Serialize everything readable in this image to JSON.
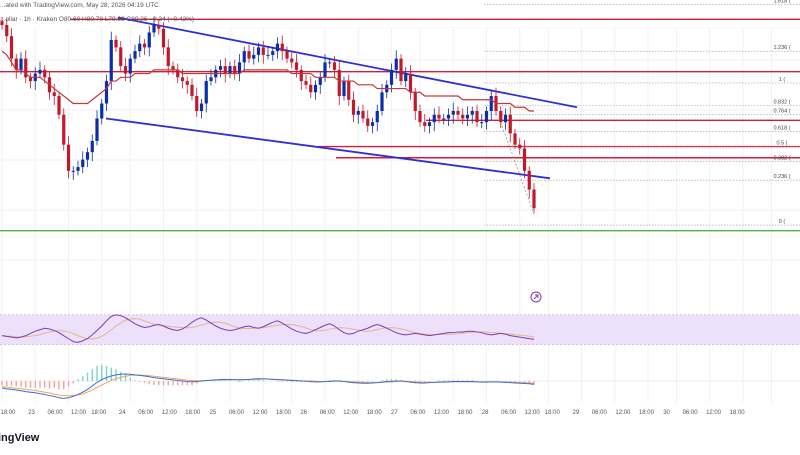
{
  "header": {
    "text": "...ollar · 1h · Kraken  O80.60  H80.78  L79.92  C80.26  −0.34 (−0.42%)",
    "published": "...ated with TradingView.com, May 28, 2026 04:19 UTC"
  },
  "branding": {
    "logo_text": "ingView"
  },
  "colors": {
    "up": "#0b2ea8",
    "down": "#c2182b",
    "channel": "#2f2fd6",
    "sma": "#c03a3a",
    "resistance": "#d21d3a",
    "fib": "#9a9a9a",
    "support": "#4caf50",
    "rsi_band": "#ece0fa",
    "rsi_line": "#7b3fb0",
    "rsi_ma": "#e0b88a",
    "macd_line": "#3b6fd6",
    "signal_line": "#f0a458",
    "hist_pos": "#7fd3c8",
    "hist_neg": "#f2a19b"
  },
  "chart_data": {
    "type": "line",
    "title": "",
    "xlabel": "",
    "ylabel": "",
    "ylim": [
      77.5,
      85.2
    ],
    "grid": true,
    "price_series": {
      "name": "",
      "values": [
        84.8,
        84.5,
        83.9,
        83.6,
        83.9,
        83.4,
        83.3,
        83.5,
        83.6,
        83.4,
        83.0,
        82.9,
        82.4,
        81.6,
        80.9,
        80.9,
        81.0,
        81.2,
        81.4,
        81.7,
        82.3,
        82.7,
        83.3,
        84.4,
        84.2,
        83.7,
        83.5,
        83.9,
        84.1,
        84.3,
        84.2,
        84.6,
        84.8,
        84.7,
        84.2,
        83.7,
        83.6,
        83.4,
        83.3,
        83.2,
        82.9,
        82.5,
        82.7,
        83.3,
        83.4,
        83.6,
        83.7,
        83.5,
        83.7,
        83.5,
        83.8,
        84.1,
        83.9,
        84.0,
        84.2,
        84.0,
        84.0,
        84.1,
        84.3,
        84.1,
        83.9,
        83.8,
        83.6,
        83.3,
        83.2,
        83.0,
        83.2,
        83.4,
        83.8,
        83.8,
        83.6,
        82.9,
        83.3,
        82.8,
        82.4,
        82.5,
        82.3,
        82.1,
        82.2,
        82.5,
        83.0,
        83.2,
        83.6,
        83.9,
        83.3,
        83.5,
        83.0,
        82.5,
        82.2,
        82.1,
        82.2,
        82.4,
        82.3,
        82.3,
        82.4,
        82.5,
        82.4,
        82.3,
        82.4,
        82.5,
        82.2,
        82.2,
        82.5,
        82.9,
        82.5,
        82.2,
        82.4,
        81.9,
        81.6,
        81.5,
        80.9,
        80.4,
        79.9
      ],
      "ohlc_legend": {
        "open": 80.6,
        "high": 80.78,
        "low": 79.92,
        "close": 80.26,
        "change": -0.34,
        "change_pct": -0.42
      }
    },
    "sma_series": {
      "name": "",
      "values": [
        84.1,
        84.0,
        83.8,
        83.6,
        83.6,
        83.5,
        83.4,
        83.4,
        83.4,
        83.3,
        83.2,
        83.1,
        83.0,
        82.9,
        82.8,
        82.7,
        82.7,
        82.7,
        82.7,
        82.8,
        82.9,
        83.0,
        83.1,
        83.3,
        83.3,
        83.4,
        83.4,
        83.4,
        83.5,
        83.5,
        83.5,
        83.5,
        83.6,
        83.6,
        83.6,
        83.6,
        83.6,
        83.6,
        83.5,
        83.5,
        83.5,
        83.5,
        83.5,
        83.5,
        83.5,
        83.5,
        83.5,
        83.5,
        83.5,
        83.5,
        83.5,
        83.6,
        83.6,
        83.6,
        83.6,
        83.6,
        83.6,
        83.6,
        83.6,
        83.6,
        83.6,
        83.5,
        83.5,
        83.5,
        83.5,
        83.5,
        83.4,
        83.4,
        83.4,
        83.4,
        83.4,
        83.3,
        83.3,
        83.3,
        83.3,
        83.2,
        83.2,
        83.2,
        83.2,
        83.1,
        83.1,
        83.1,
        83.1,
        83.1,
        83.1,
        83.1,
        83.0,
        83.0,
        83.0,
        82.9,
        82.9,
        82.9,
        82.9,
        82.9,
        82.9,
        82.9,
        82.9,
        82.8,
        82.8,
        82.8,
        82.8,
        82.8,
        82.8,
        82.8,
        82.7,
        82.7,
        82.7,
        82.7,
        82.6,
        82.6,
        82.6,
        82.5,
        82.5
      ]
    },
    "channel": {
      "upper": [
        [
          118,
          85.0
        ],
        [
          577,
          82.6
        ]
      ],
      "lower": [
        [
          106,
          82.3
        ],
        [
          550,
          80.7
        ]
      ]
    },
    "horizontal_levels": [
      {
        "name": "resistance-1",
        "value": 84.95
      },
      {
        "name": "resistance-2",
        "value": 83.55
      },
      {
        "name": "resistance-3",
        "value": 82.25
      },
      {
        "name": "resistance-4",
        "value": 81.55
      },
      {
        "name": "resistance-5",
        "value": 81.25
      },
      {
        "name": "support-1",
        "value": 79.3
      }
    ],
    "fibonacci": [
      {
        "label": "1.618 (",
        "value": 85.35
      },
      {
        "label": "1.236 (",
        "value": 84.1
      },
      {
        "label": "1 (",
        "value": 83.25
      },
      {
        "label": "0.832 (",
        "value": 82.65
      },
      {
        "label": "0.764 (",
        "value": 82.4
      },
      {
        "label": "0.618 (",
        "value": 81.95
      },
      {
        "label": "0.5 (",
        "value": 81.55
      },
      {
        "label": "0.382 (",
        "value": 81.15
      },
      {
        "label": "0.236 (",
        "value": 80.65
      },
      {
        "label": "0 (",
        "value": 79.45
      }
    ],
    "rsi_values": [
      42,
      41,
      40,
      39,
      40,
      42,
      45,
      48,
      50,
      52,
      51,
      49,
      46,
      42,
      38,
      34,
      33,
      35,
      38,
      43,
      49,
      55,
      62,
      68,
      70,
      69,
      66,
      62,
      58,
      55,
      53,
      54,
      56,
      57,
      55,
      52,
      50,
      49,
      51,
      55,
      60,
      64,
      66,
      63,
      59,
      55,
      52,
      50,
      49,
      50,
      52,
      54,
      55,
      53,
      52,
      54,
      57,
      60,
      62,
      59,
      55,
      51,
      48,
      46,
      45,
      47,
      50,
      53,
      56,
      58,
      55,
      50,
      46,
      44,
      45,
      48,
      50,
      52,
      55,
      57,
      55,
      52,
      49,
      46,
      44,
      43,
      44,
      45,
      44,
      43,
      42,
      43,
      44,
      45,
      46,
      46,
      47,
      47,
      48,
      48,
      47,
      46,
      44,
      43,
      44,
      45,
      44,
      42,
      41,
      40,
      39,
      38,
      37
    ],
    "macd_line": [
      -0.25,
      -0.28,
      -0.3,
      -0.32,
      -0.35,
      -0.38,
      -0.4,
      -0.42,
      -0.45,
      -0.48,
      -0.52,
      -0.55,
      -0.6,
      -0.62,
      -0.6,
      -0.55,
      -0.48,
      -0.4,
      -0.3,
      -0.18,
      -0.05,
      0.05,
      0.12,
      0.18,
      0.22,
      0.24,
      0.25,
      0.24,
      0.22,
      0.2,
      0.18,
      0.15,
      0.12,
      0.1,
      0.08,
      0.06,
      0.04,
      0.02,
      0.0,
      -0.02,
      -0.03,
      -0.02,
      0.0,
      0.02,
      0.03,
      0.04,
      0.05,
      0.06,
      0.06,
      0.05,
      0.04,
      0.05,
      0.06,
      0.07,
      0.08,
      0.08,
      0.07,
      0.06,
      0.05,
      0.04,
      0.03,
      0.02,
      0.01,
      0.0,
      -0.01,
      -0.02,
      -0.03,
      -0.03,
      -0.02,
      -0.01,
      0.0,
      0.0,
      -0.02,
      -0.04,
      -0.06,
      -0.07,
      -0.08,
      -0.08,
      -0.07,
      -0.06,
      -0.04,
      -0.02,
      -0.01,
      0.0,
      0.0,
      -0.02,
      -0.04,
      -0.06,
      -0.07,
      -0.07,
      -0.06,
      -0.05,
      -0.04,
      -0.03,
      -0.03,
      -0.02,
      -0.02,
      -0.02,
      -0.02,
      -0.02,
      -0.03,
      -0.04,
      -0.04,
      -0.03,
      -0.03,
      -0.04,
      -0.05,
      -0.06,
      -0.07,
      -0.08,
      -0.09,
      -0.1,
      -0.12
    ],
    "signal_line": [
      -0.2,
      -0.22,
      -0.24,
      -0.26,
      -0.28,
      -0.3,
      -0.32,
      -0.34,
      -0.37,
      -0.4,
      -0.43,
      -0.47,
      -0.5,
      -0.52,
      -0.53,
      -0.52,
      -0.5,
      -0.46,
      -0.4,
      -0.32,
      -0.23,
      -0.14,
      -0.06,
      0.02,
      0.08,
      0.13,
      0.17,
      0.2,
      0.21,
      0.21,
      0.2,
      0.19,
      0.17,
      0.15,
      0.13,
      0.11,
      0.09,
      0.07,
      0.05,
      0.03,
      0.02,
      0.01,
      0.01,
      0.01,
      0.02,
      0.03,
      0.03,
      0.04,
      0.04,
      0.05,
      0.05,
      0.05,
      0.05,
      0.06,
      0.06,
      0.07,
      0.07,
      0.06,
      0.06,
      0.05,
      0.04,
      0.03,
      0.02,
      0.01,
      0.0,
      0.0,
      -0.01,
      -0.02,
      -0.02,
      -0.02,
      -0.01,
      -0.01,
      -0.01,
      -0.02,
      -0.03,
      -0.04,
      -0.05,
      -0.06,
      -0.06,
      -0.06,
      -0.05,
      -0.04,
      -0.03,
      -0.02,
      -0.01,
      -0.01,
      -0.02,
      -0.03,
      -0.04,
      -0.05,
      -0.05,
      -0.05,
      -0.05,
      -0.04,
      -0.04,
      -0.03,
      -0.03,
      -0.03,
      -0.03,
      -0.03,
      -0.03,
      -0.03,
      -0.03,
      -0.03,
      -0.03,
      -0.03,
      -0.04,
      -0.04,
      -0.05,
      -0.06,
      -0.06,
      -0.07,
      -0.08
    ],
    "x_ticks": [
      {
        "bar": 0,
        "label": "18:00"
      },
      {
        "bar": 7,
        "label": "23"
      },
      {
        "bar": 14,
        "label": "06:00"
      },
      {
        "bar": 21,
        "label": "12:00"
      },
      {
        "bar": 27,
        "label": "18:00"
      },
      {
        "bar": 34,
        "label": "24"
      },
      {
        "bar": 41,
        "label": "06:00"
      },
      {
        "bar": 48,
        "label": "12:00"
      },
      {
        "bar": 55,
        "label": "18:00"
      },
      {
        "bar": 61,
        "label": "25"
      },
      {
        "bar": 68,
        "label": "06:00"
      },
      {
        "bar": 75,
        "label": "12:00"
      },
      {
        "bar": 82,
        "label": "18:00"
      },
      {
        "bar": 88,
        "label": "26"
      },
      {
        "bar": 95,
        "label": "06:00"
      },
      {
        "bar": 102,
        "label": "12:00"
      },
      {
        "bar": 109,
        "label": "18:00"
      },
      {
        "bar": 115,
        "label": "27"
      },
      {
        "bar": 122,
        "label": "06:00"
      },
      {
        "bar": 129,
        "label": "12:00"
      },
      {
        "bar": 136,
        "label": "18:00"
      },
      {
        "bar": 142,
        "label": "28"
      },
      {
        "bar": 149,
        "label": "06:00"
      },
      {
        "bar": 156,
        "label": "12:00"
      },
      {
        "bar": 162,
        "label": "18:00"
      },
      {
        "bar": 169,
        "label": "29"
      },
      {
        "bar": 176,
        "label": "06:00"
      },
      {
        "bar": 183,
        "label": "12:00"
      },
      {
        "bar": 190,
        "label": "18:00"
      },
      {
        "bar": 196,
        "label": "30"
      },
      {
        "bar": 203,
        "label": "06:00"
      },
      {
        "bar": 210,
        "label": "12:00"
      },
      {
        "bar": 217,
        "label": "18:00"
      }
    ]
  }
}
